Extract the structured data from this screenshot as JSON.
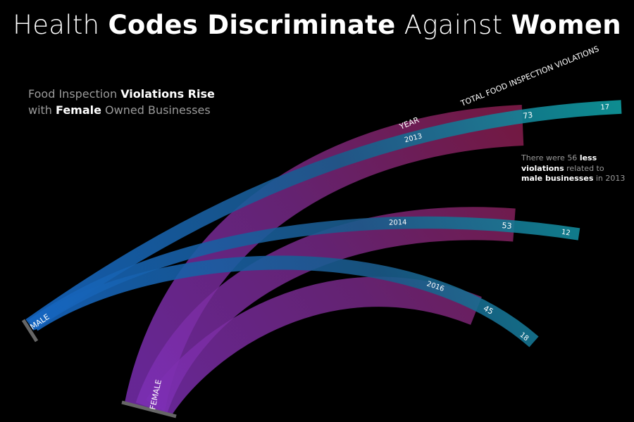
{
  "title": {
    "part1": "Health ",
    "bold1": "Codes Discriminate",
    "part2": " Against ",
    "bold2": "Women"
  },
  "subtitle": {
    "line1_a": "Food Inspection ",
    "line1_b": "Violations Rise",
    "line2_a": "with ",
    "line2_b": "Female",
    "line2_c": " Owned Businesses"
  },
  "note": {
    "a": "There were 56 ",
    "b": "less",
    "c": "violations",
    "d": " related to",
    "e": "male businesses",
    "f": " in 2013"
  },
  "chart_data": {
    "type": "area",
    "groups": [
      {
        "name": "MALE",
        "color": "#1f7fd0"
      },
      {
        "name": "FEMALE",
        "color": "#8a2fb0"
      }
    ],
    "year_label": "YEAR",
    "total_label": "TOTAL FOOD INSPECTION VIOLATIONS",
    "years": [
      "2013",
      "2014",
      "2016"
    ],
    "female_violations": [
      73,
      53,
      45
    ],
    "male_violations": [
      17,
      12,
      18
    ],
    "colors": {
      "female_end": "#8c1e50",
      "male_end": "#0f9ba0"
    }
  }
}
